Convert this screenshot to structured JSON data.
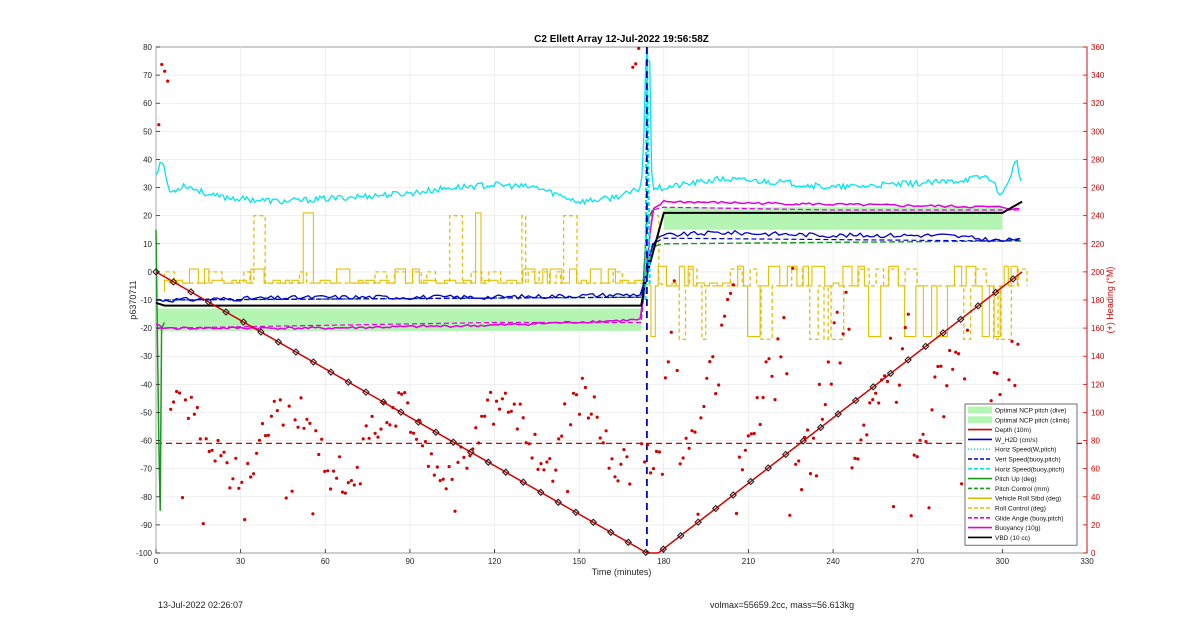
{
  "chart_data": {
    "type": "line",
    "title": "C2 Ellett Array 12-Jul-2022 19:56:58Z",
    "xlabel": "Time (minutes)",
    "ylabel": "p6370711",
    "y2label": "(+) Heading (°M)",
    "xlim": [
      0,
      330
    ],
    "ylim": [
      -100,
      80
    ],
    "y2lim": [
      0,
      360
    ],
    "xticks": [
      0,
      30,
      60,
      90,
      120,
      150,
      180,
      210,
      240,
      270,
      300,
      330
    ],
    "yticks": [
      -100,
      -90,
      -80,
      -70,
      -60,
      -50,
      -40,
      -30,
      -20,
      -10,
      0,
      10,
      20,
      30,
      40,
      50,
      60,
      70,
      80
    ],
    "y2ticks": [
      0,
      20,
      40,
      60,
      80,
      100,
      120,
      140,
      160,
      180,
      200,
      220,
      240,
      260,
      280,
      300,
      320,
      340,
      360
    ],
    "grid": true,
    "legend_position": "bottom-right",
    "colors": {
      "cyan": "#00e5ee",
      "red": "#d40000",
      "blue": "#0000cc",
      "green": "#1a9a1a",
      "yellow": "#e6c000",
      "magenta": "#e000e0",
      "black": "#000000",
      "lightgreen": "#b4f5b4"
    },
    "apogee_x": 174,
    "legend": [
      {
        "name": "Optimal NCP pitch (dive)",
        "style": "patch",
        "color": "#b4f5b4"
      },
      {
        "name": "Optimal NCP pitch (climb)",
        "style": "patch",
        "color": "#b4f5b4"
      },
      {
        "name": "Depth (10m)",
        "style": "solid",
        "color": "#d40000"
      },
      {
        "name": "W_H2D (cm/s)",
        "style": "solid",
        "color": "#0000cc"
      },
      {
        "name": "Horiz Speed(W,pitch)",
        "style": "dotted",
        "color": "#00e5ee"
      },
      {
        "name": "Vert Speed(buoy,pitch)",
        "style": "dashed",
        "color": "#0000cc"
      },
      {
        "name": "Horiz Speed(buoy,pitch)",
        "style": "dashed",
        "color": "#00e5ee"
      },
      {
        "name": "Pitch Up (deg)",
        "style": "solid",
        "color": "#1a9a1a"
      },
      {
        "name": "Pitch Control (mm)",
        "style": "dashed",
        "color": "#1a9a1a"
      },
      {
        "name": "Vehicle Roll Stbd (deg)",
        "style": "solid",
        "color": "#e6c000"
      },
      {
        "name": "Roll Control (deg)",
        "style": "dashed",
        "color": "#e6c000"
      },
      {
        "name": "Glide Angle (buoy,pitch)",
        "style": "dashed",
        "color": "#e000e0"
      },
      {
        "name": "Buoyancy (10g)",
        "style": "solid",
        "color": "#e000e0"
      },
      {
        "name": "VBD (10 cc)",
        "style": "solid",
        "color": "#000000"
      }
    ],
    "series": [
      {
        "key": "depth",
        "values_x": [
          0,
          174,
          178,
          307
        ],
        "values_y": [
          0,
          -100,
          -100,
          0
        ]
      },
      {
        "key": "horiz_speed",
        "values_x": [
          0,
          2,
          5,
          10,
          20,
          30,
          45,
          60,
          75,
          90,
          105,
          120,
          135,
          150,
          160,
          168,
          172,
          174,
          176,
          180,
          200,
          220,
          240,
          260,
          280,
          295,
          300,
          305,
          307
        ],
        "values_y": [
          35,
          40,
          28,
          31,
          27,
          26,
          25,
          26,
          27,
          28,
          30,
          31,
          30,
          25,
          26,
          28,
          30,
          70,
          30,
          30,
          33,
          32,
          30,
          31,
          32,
          34,
          27,
          40,
          30
        ]
      },
      {
        "key": "w_h2d",
        "values_x": [
          0,
          3,
          60,
          120,
          172,
          176,
          180,
          200,
          240,
          280,
          300,
          307
        ],
        "values_y": [
          -10,
          -10,
          -9,
          -9,
          -8,
          10,
          13,
          14,
          13,
          13,
          11,
          12
        ]
      },
      {
        "key": "vert_speed",
        "values_x": [
          0,
          3,
          172,
          176,
          180,
          300,
          307
        ],
        "values_y": [
          -10,
          -10,
          -9,
          10,
          12,
          11,
          12
        ]
      },
      {
        "key": "pitch_control",
        "values_x": [
          0,
          3,
          172,
          176,
          180,
          300,
          307
        ],
        "values_y": [
          -10,
          -10,
          -9,
          9,
          10,
          11,
          11
        ]
      },
      {
        "key": "buoyancy",
        "values_x": [
          0,
          3,
          60,
          120,
          172,
          176,
          180,
          240,
          300,
          307
        ],
        "values_y": [
          -19,
          -20,
          -20,
          -19,
          -17,
          22,
          25,
          24,
          23,
          22
        ]
      },
      {
        "key": "glide_angle",
        "values_x": [
          0,
          3,
          60,
          120,
          172,
          176,
          180,
          240,
          300,
          307
        ],
        "values_y": [
          -20,
          -20,
          -19,
          -18,
          -18,
          22,
          23,
          22,
          22,
          22
        ]
      },
      {
        "key": "vbd",
        "values_x": [
          0,
          3,
          172,
          174,
          180,
          300,
          307
        ],
        "values_y": [
          -11,
          -12,
          -12,
          -1,
          21,
          21,
          25
        ]
      },
      {
        "key": "ncp_dive",
        "x_range": [
          0,
          172
        ],
        "y_range": [
          -21,
          -13
        ]
      },
      {
        "key": "ncp_climb",
        "x_range": [
          180,
          300
        ],
        "y_range": [
          15,
          23
        ]
      },
      {
        "key": "heading_ref",
        "y2_value": 78
      },
      {
        "key": "roll_control",
        "base": -7,
        "low_up": 0,
        "high_down": -24
      }
    ]
  },
  "footer": {
    "left_timestamp": "13-Jul-2022 02:26:07",
    "right_info": "volmax=55659.2cc, mass=56.613kg"
  }
}
